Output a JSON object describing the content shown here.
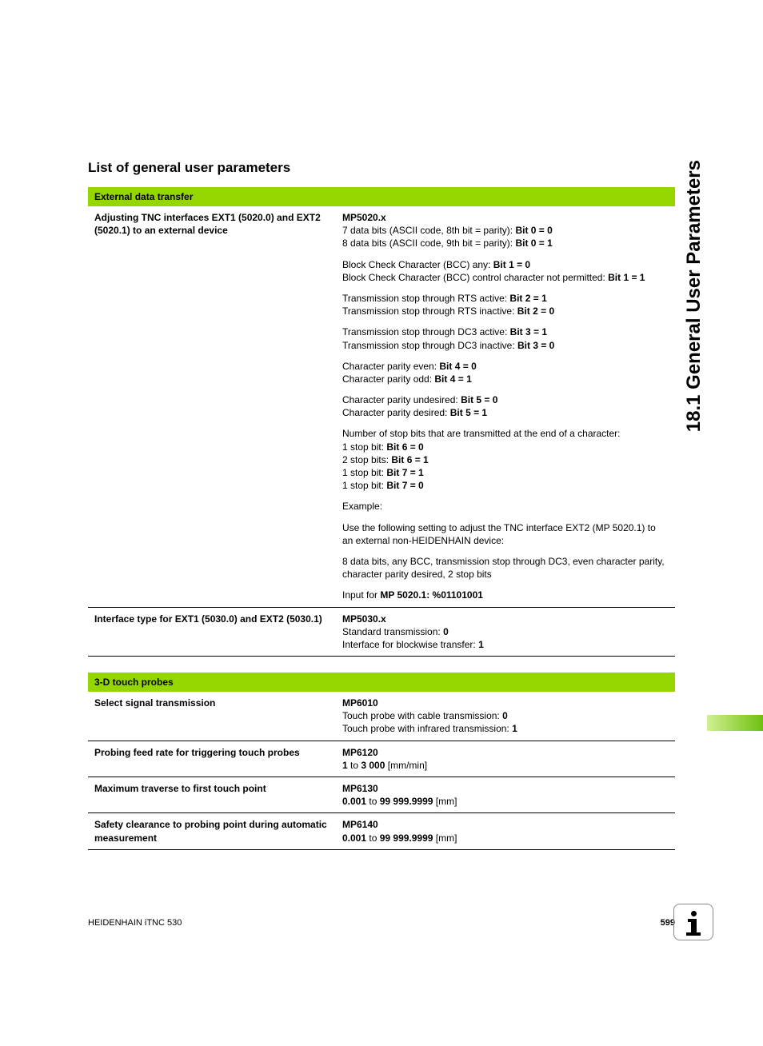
{
  "side_title": "18.1 General User Parameters",
  "section_title": "List of general user parameters",
  "colors": {
    "header_bg": "#95d600",
    "tab_gradient_start": "#d0f090",
    "tab_gradient_end": "#70c010",
    "rule": "#000000",
    "icon_border": "#888888"
  },
  "fonts": {
    "body_family": "Arial, Helvetica, sans-serif",
    "section_title_size": 17,
    "side_title_size": 24,
    "table_size": 12,
    "footer_size": 11
  },
  "tables": [
    {
      "header": "External data transfer",
      "rows": [
        {
          "left": "Adjusting TNC interfaces EXT1 (5020.0) and EXT2 (5020.1) to an external device",
          "right": [
            {
              "segments": [
                {
                  "t": "MP5020.x",
                  "b": true
                }
              ]
            },
            {
              "segments": [
                {
                  "t": "7 data bits (ASCII code, 8th bit = parity): "
                },
                {
                  "t": "Bit 0 = 0",
                  "b": true
                }
              ]
            },
            {
              "segments": [
                {
                  "t": "8 data bits (ASCII code, 9th bit = parity): "
                },
                {
                  "t": "Bit 0 = 1",
                  "b": true
                }
              ],
              "gap": true
            },
            {
              "segments": [
                {
                  "t": "Block Check Character (BCC) any: "
                },
                {
                  "t": "Bit 1 = 0",
                  "b": true
                }
              ]
            },
            {
              "segments": [
                {
                  "t": "Block Check Character (BCC) control character not permitted: "
                },
                {
                  "t": "Bit 1 = 1",
                  "b": true
                }
              ],
              "gap": true
            },
            {
              "segments": [
                {
                  "t": "Transmission stop through RTS active: "
                },
                {
                  "t": "Bit 2 = 1",
                  "b": true
                }
              ]
            },
            {
              "segments": [
                {
                  "t": "Transmission stop through RTS inactive: "
                },
                {
                  "t": "Bit 2 = 0",
                  "b": true
                }
              ],
              "gap": true
            },
            {
              "segments": [
                {
                  "t": "Transmission stop through DC3 active: "
                },
                {
                  "t": "Bit 3 = 1",
                  "b": true
                }
              ]
            },
            {
              "segments": [
                {
                  "t": "Transmission stop through DC3 inactive: "
                },
                {
                  "t": "Bit 3 = 0",
                  "b": true
                }
              ],
              "gap": true
            },
            {
              "segments": [
                {
                  "t": "Character parity even: "
                },
                {
                  "t": "Bit 4 = 0",
                  "b": true
                }
              ]
            },
            {
              "segments": [
                {
                  "t": "Character parity odd: "
                },
                {
                  "t": "Bit 4 = 1",
                  "b": true
                }
              ],
              "gap": true
            },
            {
              "segments": [
                {
                  "t": "Character parity undesired: "
                },
                {
                  "t": "Bit 5 = 0",
                  "b": true
                }
              ]
            },
            {
              "segments": [
                {
                  "t": "Character parity desired: "
                },
                {
                  "t": "Bit 5 = 1",
                  "b": true
                }
              ],
              "gap": true
            },
            {
              "segments": [
                {
                  "t": "Number of stop bits that are transmitted at the end of a character:"
                }
              ]
            },
            {
              "segments": [
                {
                  "t": "1 stop bit: "
                },
                {
                  "t": "Bit 6 = 0",
                  "b": true
                }
              ]
            },
            {
              "segments": [
                {
                  "t": "2 stop bits: "
                },
                {
                  "t": "Bit 6 = 1",
                  "b": true
                }
              ]
            },
            {
              "segments": [
                {
                  "t": "1 stop bit: "
                },
                {
                  "t": "Bit 7 = 1",
                  "b": true
                }
              ]
            },
            {
              "segments": [
                {
                  "t": "1 stop bit: "
                },
                {
                  "t": "Bit 7 = 0",
                  "b": true
                }
              ],
              "gap": true
            },
            {
              "segments": [
                {
                  "t": "Example:"
                }
              ],
              "gap": true
            },
            {
              "segments": [
                {
                  "t": "Use the following setting to adjust the TNC interface EXT2 (MP 5020.1) to an external non-HEIDENHAIN device:"
                }
              ],
              "gap": true
            },
            {
              "segments": [
                {
                  "t": "8 data bits, any BCC, transmission stop through DC3, even character parity, character parity desired, 2 stop bits"
                }
              ],
              "gap": true
            },
            {
              "segments": [
                {
                  "t": "Input for "
                },
                {
                  "t": "MP 5020.1: %01101001",
                  "b": true
                }
              ]
            }
          ]
        },
        {
          "left": "Interface type for EXT1 (5030.0) and EXT2 (5030.1)",
          "right": [
            {
              "segments": [
                {
                  "t": "MP5030.x",
                  "b": true
                }
              ]
            },
            {
              "segments": [
                {
                  "t": "Standard transmission: "
                },
                {
                  "t": "0",
                  "b": true
                }
              ]
            },
            {
              "segments": [
                {
                  "t": "Interface for blockwise transfer: "
                },
                {
                  "t": "1",
                  "b": true
                }
              ]
            }
          ]
        }
      ]
    },
    {
      "header": "3-D touch probes",
      "rows": [
        {
          "left": "Select signal transmission",
          "right": [
            {
              "segments": [
                {
                  "t": "MP6010",
                  "b": true
                }
              ]
            },
            {
              "segments": [
                {
                  "t": "Touch probe with cable transmission: "
                },
                {
                  "t": "0",
                  "b": true
                }
              ]
            },
            {
              "segments": [
                {
                  "t": "Touch probe with infrared transmission: "
                },
                {
                  "t": "1",
                  "b": true
                }
              ]
            }
          ]
        },
        {
          "left": "Probing feed rate for triggering touch probes",
          "right": [
            {
              "segments": [
                {
                  "t": "MP6120",
                  "b": true
                }
              ]
            },
            {
              "segments": [
                {
                  "t": "1",
                  "b": true
                },
                {
                  "t": " to "
                },
                {
                  "t": "3 000",
                  "b": true
                },
                {
                  "t": " [mm/min]"
                }
              ]
            }
          ]
        },
        {
          "left": "Maximum traverse to first touch point",
          "right": [
            {
              "segments": [
                {
                  "t": "MP6130",
                  "b": true
                }
              ]
            },
            {
              "segments": [
                {
                  "t": "0.001",
                  "b": true
                },
                {
                  "t": " to "
                },
                {
                  "t": "99 999.9999",
                  "b": true
                },
                {
                  "t": " [mm]"
                }
              ]
            }
          ]
        },
        {
          "left": "Safety clearance to probing point during automatic measurement",
          "right": [
            {
              "segments": [
                {
                  "t": "MP6140",
                  "b": true
                }
              ]
            },
            {
              "segments": [
                {
                  "t": "0.001",
                  "b": true
                },
                {
                  "t": " to "
                },
                {
                  "t": "99 999.9999",
                  "b": true
                },
                {
                  "t": " [mm]"
                }
              ]
            }
          ]
        }
      ]
    }
  ],
  "footer": {
    "left": "HEIDENHAIN iTNC 530",
    "page": "599"
  }
}
